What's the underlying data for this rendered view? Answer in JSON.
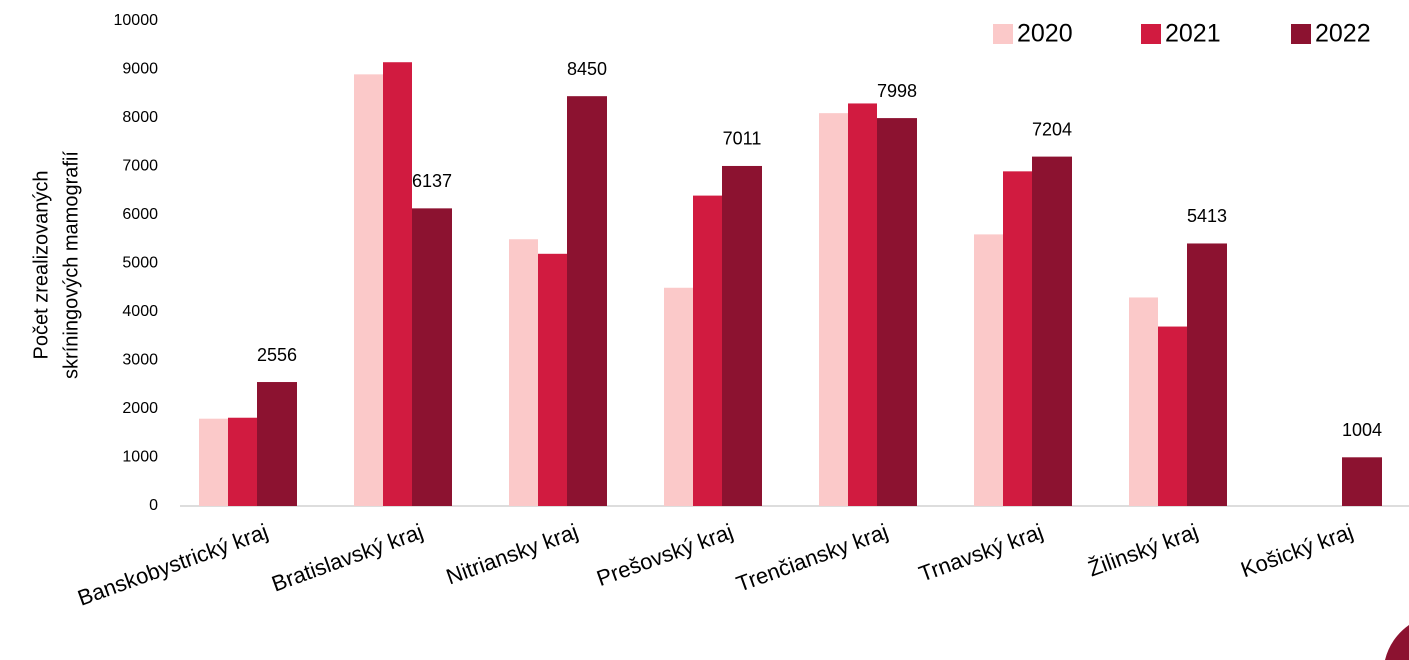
{
  "chart_data": {
    "type": "bar",
    "y_label": [
      "Počet zrealizovaných",
      "skríningových mamografií"
    ],
    "categories": [
      "Banskobystrický kraj",
      "Bratislavský kraj",
      "Nitriansky kraj",
      "Prešovský kraj",
      "Trenčiansky kraj",
      "Trnavský kraj",
      "Žilinský kraj",
      "Košický kraj"
    ],
    "series": [
      {
        "name": "2020",
        "color": "#fbc9c9",
        "values": [
          1800,
          8900,
          5500,
          4500,
          8100,
          5600,
          4300,
          null
        ]
      },
      {
        "name": "2021",
        "color": "#d11b40",
        "values": [
          1820,
          9150,
          5200,
          6400,
          8300,
          6900,
          3700,
          null
        ]
      },
      {
        "name": "2022",
        "color": "#8c1230",
        "values": [
          2556,
          6137,
          8450,
          7011,
          7998,
          7204,
          5413,
          1004
        ],
        "data_labels": true
      }
    ],
    "ylim": [
      0,
      10000
    ],
    "yticks": [
      0,
      1000,
      2000,
      3000,
      4000,
      5000,
      6000,
      7000,
      8000,
      9000,
      10000
    ],
    "grid": false,
    "legend": "top-right"
  }
}
